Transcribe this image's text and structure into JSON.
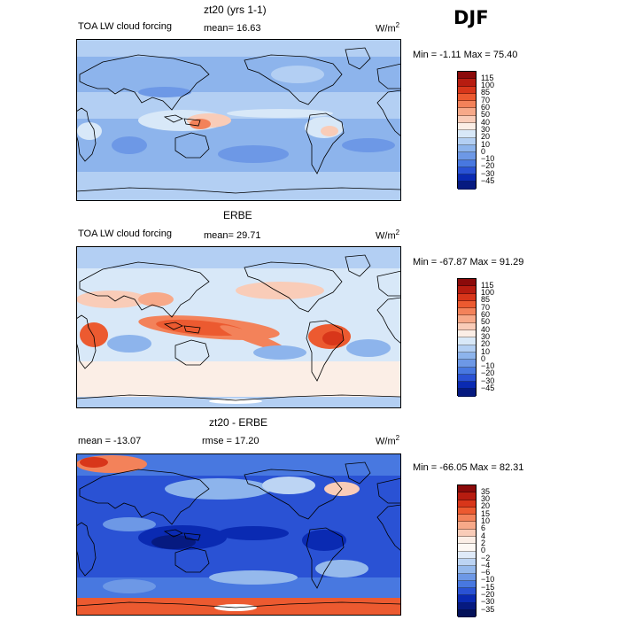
{
  "season": "DJF",
  "chart_data": [
    {
      "type": "heatmap",
      "title": "zt20 (yrs 1-1)",
      "subtitle": "TOA LW cloud forcing",
      "mean_label": "mean=  16.63",
      "units_prefix": "W/m",
      "units_exp": "2",
      "min_max": "Min =  -1.11 Max =  75.40",
      "colorbar": {
        "levels": [
          "115",
          "100",
          "85",
          "70",
          "60",
          "50",
          "40",
          "30",
          "20",
          "10",
          "0",
          "-10",
          "-20",
          "-30",
          "-45"
        ],
        "colors": [
          "#8b0a0a",
          "#b71c10",
          "#d8361a",
          "#ec5a30",
          "#f3825a",
          "#f7a989",
          "#f9ccb8",
          "#fbeee6",
          "#d8e8f8",
          "#b3cff3",
          "#8db4ec",
          "#6d98e6",
          "#4878e0",
          "#2a52d4",
          "#0a2ab2",
          "#061a80"
        ]
      },
      "field": "panel1"
    },
    {
      "type": "heatmap",
      "title": "ERBE",
      "subtitle": "TOA LW cloud forcing",
      "mean_label": "mean=  29.71",
      "units_prefix": "W/m",
      "units_exp": "2",
      "min_max": "Min = -67.87 Max =  91.29",
      "colorbar": {
        "levels": [
          "115",
          "100",
          "85",
          "70",
          "60",
          "50",
          "40",
          "30",
          "20",
          "10",
          "0",
          "-10",
          "-20",
          "-30",
          "-45"
        ],
        "colors": [
          "#8b0a0a",
          "#b71c10",
          "#d8361a",
          "#ec5a30",
          "#f3825a",
          "#f7a989",
          "#f9ccb8",
          "#fbeee6",
          "#d8e8f8",
          "#b3cff3",
          "#8db4ec",
          "#6d98e6",
          "#4878e0",
          "#2a52d4",
          "#0a2ab2",
          "#061a80"
        ]
      },
      "field": "panel2"
    },
    {
      "type": "heatmap",
      "title": "zt20 - ERBE",
      "mean_label": "mean = -13.07",
      "rmse_label": "rmse =  17.20",
      "units_prefix": "W/m",
      "units_exp": "2",
      "min_max": "Min = -66.05 Max =  82.31",
      "colorbar": {
        "levels": [
          "35",
          "30",
          "20",
          "15",
          "10",
          "6",
          "4",
          "2",
          "0",
          "-2",
          "-4",
          "-6",
          "-10",
          "-15",
          "-20",
          "-30",
          "-35"
        ],
        "colors": [
          "#8b0a0a",
          "#b71c10",
          "#d8361a",
          "#ec5a30",
          "#f3825a",
          "#f7a989",
          "#f9ccb8",
          "#fbeee6",
          "#fdf8f4",
          "#dfeaf8",
          "#bcd4f3",
          "#95b9ec",
          "#6d98e6",
          "#4878e0",
          "#2a52d4",
          "#0a2ab2",
          "#061a80",
          "#04125a"
        ]
      },
      "field": "panel3"
    }
  ]
}
